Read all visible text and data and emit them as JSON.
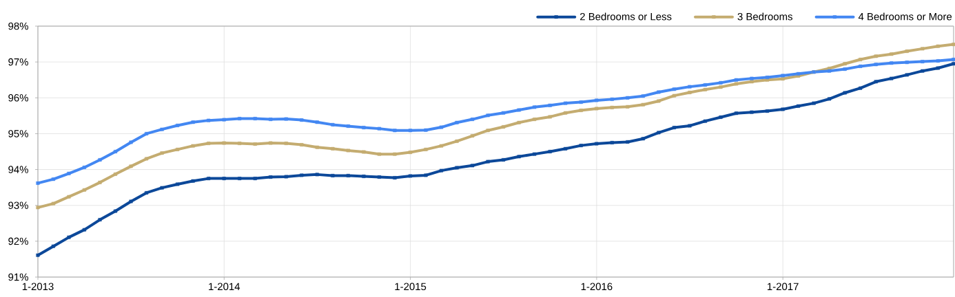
{
  "chart_data": {
    "type": "line",
    "x": [
      "2013-01",
      "2013-02",
      "2013-03",
      "2013-04",
      "2013-05",
      "2013-06",
      "2013-07",
      "2013-08",
      "2013-09",
      "2013-10",
      "2013-11",
      "2013-12",
      "2014-01",
      "2014-02",
      "2014-03",
      "2014-04",
      "2014-05",
      "2014-06",
      "2014-07",
      "2014-08",
      "2014-09",
      "2014-10",
      "2014-11",
      "2014-12",
      "2015-01",
      "2015-02",
      "2015-03",
      "2015-04",
      "2015-05",
      "2015-06",
      "2015-07",
      "2015-08",
      "2015-09",
      "2015-10",
      "2015-11",
      "2015-12",
      "2016-01",
      "2016-02",
      "2016-03",
      "2016-04",
      "2016-05",
      "2016-06",
      "2016-07",
      "2016-08",
      "2016-09",
      "2016-10",
      "2016-11",
      "2016-12",
      "2017-01",
      "2017-02",
      "2017-03",
      "2017-04",
      "2017-05",
      "2017-06",
      "2017-07",
      "2017-08",
      "2017-09",
      "2017-10",
      "2017-11",
      "2017-12"
    ],
    "series": [
      {
        "name": "2 Bedrooms or Less",
        "color": "#0c4899",
        "values": [
          91.61,
          91.86,
          92.11,
          92.32,
          92.6,
          92.84,
          93.11,
          93.35,
          93.49,
          93.59,
          93.68,
          93.75,
          93.75,
          93.75,
          93.75,
          93.79,
          93.8,
          93.84,
          93.86,
          93.83,
          93.83,
          93.81,
          93.79,
          93.77,
          93.82,
          93.84,
          93.97,
          94.05,
          94.11,
          94.22,
          94.27,
          94.36,
          94.43,
          94.5,
          94.58,
          94.67,
          94.72,
          94.75,
          94.77,
          94.86,
          95.03,
          95.17,
          95.22,
          95.35,
          95.46,
          95.57,
          95.6,
          95.63,
          95.68,
          95.77,
          95.85,
          95.97,
          96.14,
          96.27,
          96.45,
          96.54,
          96.64,
          96.75,
          96.83,
          96.95
        ]
      },
      {
        "name": "3 Bedrooms",
        "color": "#c4ac70",
        "values": [
          92.94,
          93.05,
          93.24,
          93.43,
          93.64,
          93.87,
          94.09,
          94.3,
          94.46,
          94.56,
          94.66,
          94.73,
          94.74,
          94.73,
          94.71,
          94.74,
          94.73,
          94.69,
          94.62,
          94.58,
          94.53,
          94.49,
          94.43,
          94.43,
          94.48,
          94.56,
          94.66,
          94.79,
          94.94,
          95.09,
          95.19,
          95.31,
          95.4,
          95.47,
          95.58,
          95.65,
          95.7,
          95.73,
          95.75,
          95.81,
          95.91,
          96.06,
          96.15,
          96.23,
          96.3,
          96.39,
          96.45,
          96.5,
          96.53,
          96.61,
          96.72,
          96.82,
          96.95,
          97.07,
          97.16,
          97.22,
          97.3,
          97.37,
          97.44,
          97.49
        ]
      },
      {
        "name": "4 Bedrooms or More",
        "color": "#4387f2",
        "values": [
          93.62,
          93.73,
          93.89,
          94.06,
          94.27,
          94.5,
          94.76,
          95.0,
          95.12,
          95.23,
          95.32,
          95.37,
          95.39,
          95.42,
          95.42,
          95.4,
          95.41,
          95.38,
          95.32,
          95.25,
          95.21,
          95.17,
          95.14,
          95.09,
          95.09,
          95.1,
          95.18,
          95.31,
          95.4,
          95.51,
          95.58,
          95.66,
          95.74,
          95.79,
          95.85,
          95.88,
          95.93,
          95.96,
          96.0,
          96.05,
          96.16,
          96.24,
          96.31,
          96.36,
          96.42,
          96.5,
          96.54,
          96.57,
          96.62,
          96.67,
          96.72,
          96.75,
          96.8,
          96.88,
          96.93,
          96.97,
          96.99,
          97.01,
          97.03,
          97.07
        ]
      }
    ],
    "xlim": [
      "2013-01",
      "2017-12"
    ],
    "xticks": [
      {
        "value": "2013-01",
        "label": "1-2013"
      },
      {
        "value": "2014-01",
        "label": "1-2014"
      },
      {
        "value": "2015-01",
        "label": "1-2015"
      },
      {
        "value": "2016-01",
        "label": "1-2016"
      },
      {
        "value": "2017-01",
        "label": "1-2017"
      }
    ],
    "ylim": [
      91,
      98
    ],
    "yticks": [
      {
        "value": 91,
        "label": "91%"
      },
      {
        "value": 92,
        "label": "92%"
      },
      {
        "value": 93,
        "label": "93%"
      },
      {
        "value": 94,
        "label": "94%"
      },
      {
        "value": 95,
        "label": "95%"
      },
      {
        "value": 96,
        "label": "96%"
      },
      {
        "value": 97,
        "label": "97%"
      },
      {
        "value": 98,
        "label": "98%"
      }
    ],
    "grid": true,
    "legend": "top right",
    "marker": "square",
    "line_style": "solid"
  }
}
